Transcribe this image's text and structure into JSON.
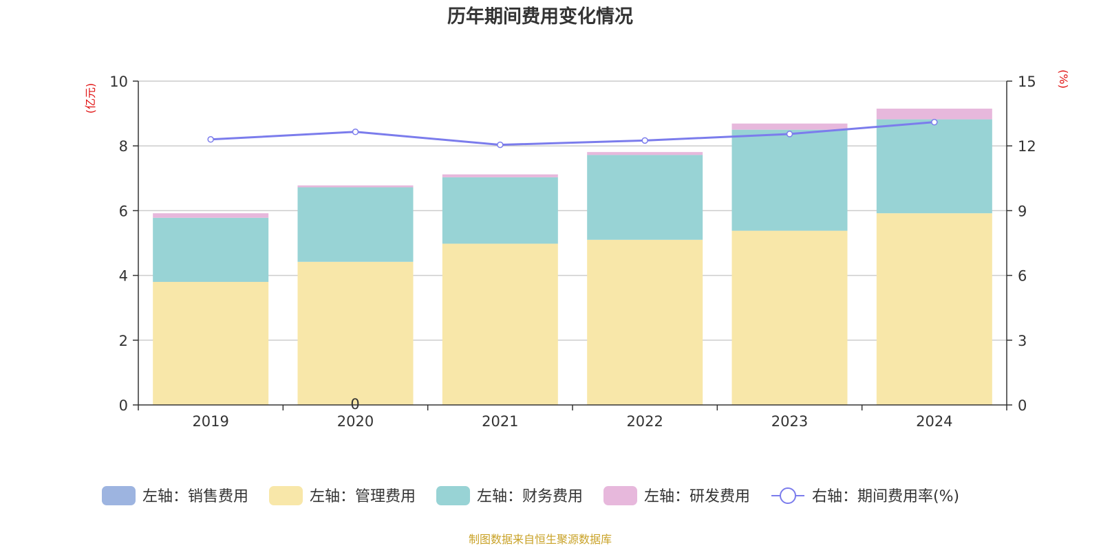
{
  "chart_data": {
    "type": "bar",
    "title": "历年期间费用变化情况",
    "categories": [
      "2019",
      "2020",
      "2021",
      "2022",
      "2023",
      "2024"
    ],
    "left_axis": {
      "unit_label": "(亿元)",
      "ylim": [
        0,
        10
      ],
      "ticks": [
        "0",
        "2",
        "4",
        "6",
        "8",
        "10"
      ]
    },
    "right_axis": {
      "unit_label": "(%)",
      "ylim": [
        0,
        15
      ],
      "ticks": [
        "0",
        "3",
        "6",
        "9",
        "12",
        "15"
      ]
    },
    "stacked": true,
    "grid": true,
    "legend_position": "bottom",
    "series": [
      {
        "name": "左轴：销售费用",
        "type": "bar",
        "axis": "left",
        "color": "#9db4e0",
        "values": [
          0,
          0,
          0,
          0,
          0,
          0
        ]
      },
      {
        "name": "左轴：管理费用",
        "type": "bar",
        "axis": "left",
        "color": "#f8e7a9",
        "values": [
          3.8,
          4.42,
          4.98,
          5.1,
          5.38,
          5.92
        ]
      },
      {
        "name": "左轴：财务费用",
        "type": "bar",
        "axis": "left",
        "color": "#98d3d5",
        "values": [
          1.98,
          2.3,
          2.05,
          2.62,
          3.12,
          2.9
        ]
      },
      {
        "name": "左轴：研发费用",
        "type": "bar",
        "axis": "left",
        "color": "#e7b8dc",
        "values": [
          0.14,
          0.06,
          0.09,
          0.09,
          0.19,
          0.33
        ]
      },
      {
        "name": "右轴：期间费用率(%)",
        "type": "line",
        "axis": "right",
        "color": "#7b7cec",
        "values": [
          12.3,
          12.65,
          12.05,
          12.25,
          12.55,
          13.1
        ]
      }
    ],
    "stray_label": "0",
    "source": "制图数据来自恒生聚源数据库"
  }
}
